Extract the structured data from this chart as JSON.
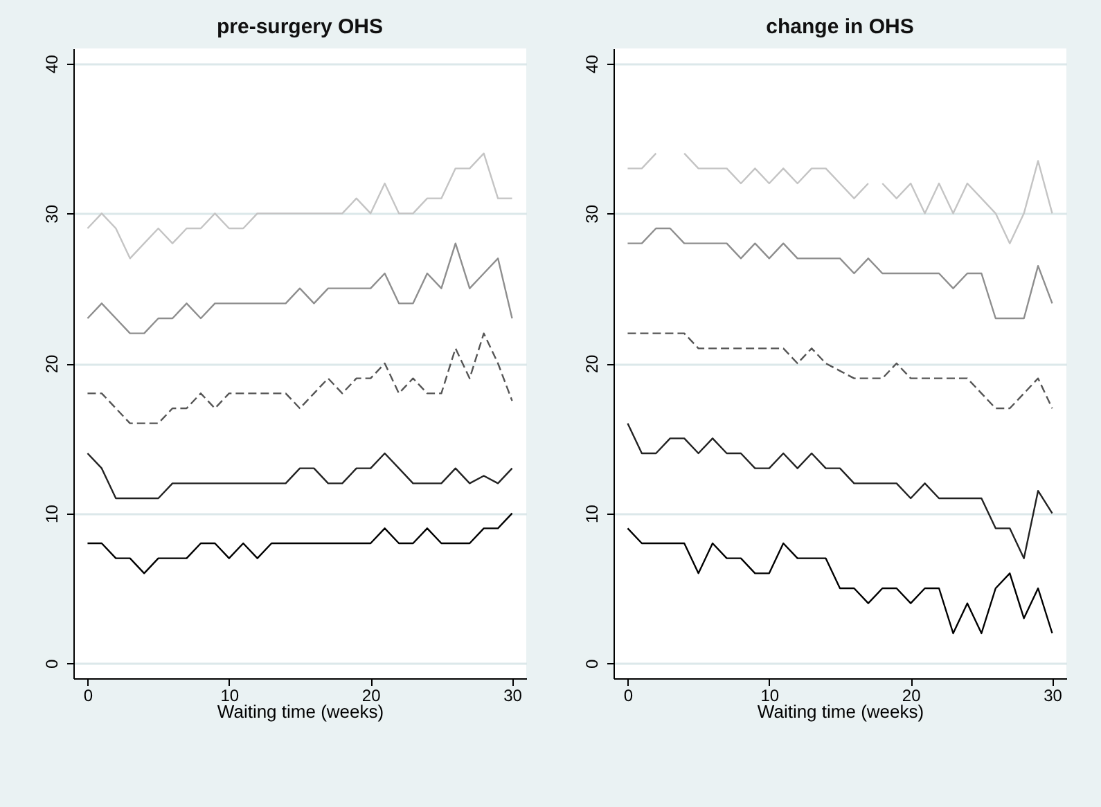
{
  "chart_data": [
    {
      "type": "line",
      "title": "pre-surgery OHS",
      "xlabel": "Waiting time (weeks)",
      "x": [
        0,
        1,
        2,
        3,
        4,
        5,
        6,
        7,
        8,
        9,
        10,
        11,
        12,
        13,
        14,
        15,
        16,
        17,
        18,
        19,
        20,
        21,
        22,
        23,
        24,
        25,
        26,
        27,
        28,
        29,
        30
      ],
      "xlim": [
        -1,
        31
      ],
      "ylim": [
        -1,
        41
      ],
      "xticks": [
        0,
        10,
        20,
        30
      ],
      "yticks": [
        0,
        10,
        20,
        30,
        40
      ],
      "grid": "y",
      "series": [
        {
          "color": "#c4c4c4",
          "line_style": "solid",
          "values": [
            29,
            30,
            29,
            27,
            28,
            29,
            28,
            29,
            29,
            30,
            29,
            29,
            30,
            30,
            30,
            30,
            30,
            30,
            30,
            31,
            30,
            32,
            30,
            30,
            31,
            31,
            33,
            33,
            34,
            31,
            31
          ]
        },
        {
          "color": "#8e8e8e",
          "line_style": "solid",
          "values": [
            23,
            24,
            23,
            22,
            22,
            23,
            23,
            24,
            23,
            24,
            24,
            24,
            24,
            24,
            24,
            25,
            24,
            25,
            25,
            25,
            25,
            26,
            24,
            24,
            26,
            25,
            28,
            25,
            26,
            27,
            23
          ]
        },
        {
          "color": "#555555",
          "line_style": "dashed",
          "values": [
            18,
            18,
            17,
            16,
            16,
            16,
            17,
            17,
            18,
            17,
            18,
            18,
            18,
            18,
            18,
            17,
            18,
            19,
            18,
            19,
            19,
            20,
            18,
            19,
            18,
            18,
            21,
            19,
            22,
            20,
            17.5
          ]
        },
        {
          "color": "#222222",
          "line_style": "solid",
          "values": [
            14,
            13,
            11,
            11,
            11,
            11,
            12,
            12,
            12,
            12,
            12,
            12,
            12,
            12,
            12,
            13,
            13,
            12,
            12,
            13,
            13,
            14,
            13,
            12,
            12,
            12,
            13,
            12,
            12.5,
            12,
            13
          ]
        },
        {
          "color": "#000000",
          "line_style": "solid",
          "values": [
            8,
            8,
            7,
            7,
            6,
            7,
            7,
            7,
            8,
            8,
            7,
            8,
            7,
            8,
            8,
            8,
            8,
            8,
            8,
            8,
            8,
            9,
            8,
            8,
            9,
            8,
            8,
            8,
            9,
            9,
            10
          ]
        }
      ]
    },
    {
      "type": "line",
      "title": "change in OHS",
      "xlabel": "Waiting time (weeks)",
      "x": [
        0,
        1,
        2,
        3,
        4,
        5,
        6,
        7,
        8,
        9,
        10,
        11,
        12,
        13,
        14,
        15,
        16,
        17,
        18,
        19,
        20,
        21,
        22,
        23,
        24,
        25,
        26,
        27,
        28,
        29,
        30
      ],
      "xlim": [
        -1,
        31
      ],
      "ylim": [
        -1,
        41
      ],
      "xticks": [
        0,
        10,
        20,
        30
      ],
      "yticks": [
        0,
        10,
        20,
        30,
        40
      ],
      "grid": "y",
      "series": [
        {
          "color": "#c4c4c4",
          "line_style": "solid",
          "x": [
            0,
            1,
            2,
            3,
            4,
            5,
            6,
            7,
            8,
            9,
            10,
            11,
            12,
            13,
            14,
            15,
            16,
            17,
            17.5,
            18,
            19,
            20,
            21,
            22,
            23,
            24,
            25,
            26,
            27,
            28,
            29,
            30
          ],
          "values": [
            33,
            33,
            34,
            null,
            34,
            33,
            33,
            33,
            32,
            33,
            32,
            33,
            32,
            33,
            33,
            32,
            31,
            32,
            null,
            32,
            31,
            32,
            30,
            32,
            30,
            32,
            31,
            30,
            28,
            30,
            33.5,
            30
          ]
        },
        {
          "color": "#8e8e8e",
          "line_style": "solid",
          "values": [
            28,
            28,
            29,
            29,
            28,
            28,
            28,
            28,
            27,
            28,
            27,
            28,
            27,
            27,
            27,
            27,
            26,
            27,
            26,
            26,
            26,
            26,
            26,
            25,
            26,
            26,
            23,
            23,
            23,
            26.5,
            24
          ]
        },
        {
          "color": "#555555",
          "line_style": "dashed",
          "values": [
            22,
            22,
            22,
            22,
            22,
            21,
            21,
            21,
            21,
            21,
            21,
            21,
            20,
            21,
            20,
            19.5,
            19,
            19,
            19,
            20,
            19,
            19,
            19,
            19,
            19,
            18,
            17,
            17,
            18,
            19,
            17
          ]
        },
        {
          "color": "#222222",
          "line_style": "solid",
          "values": [
            16,
            14,
            14,
            15,
            15,
            14,
            15,
            14,
            14,
            13,
            13,
            14,
            13,
            14,
            13,
            13,
            12,
            12,
            12,
            12,
            11,
            12,
            11,
            11,
            11,
            11,
            9,
            9,
            7,
            11.5,
            10
          ]
        },
        {
          "color": "#000000",
          "line_style": "solid",
          "values": [
            9,
            8,
            8,
            8,
            8,
            6,
            8,
            7,
            7,
            6,
            6,
            8,
            7,
            7,
            7,
            5,
            5,
            4,
            5,
            5,
            4,
            5,
            5,
            2,
            4,
            2,
            5,
            6,
            3,
            5,
            2
          ]
        }
      ]
    }
  ]
}
